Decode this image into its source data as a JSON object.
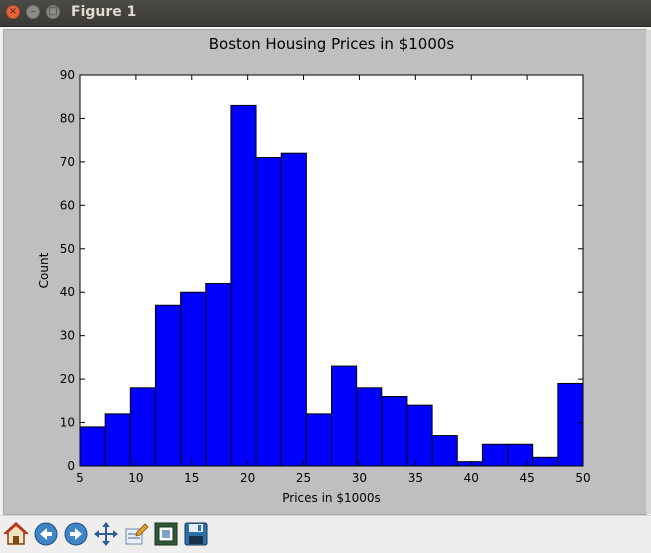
{
  "window": {
    "title": "Figure 1",
    "close_glyph": "×",
    "minimize_glyph": "–",
    "maximize_glyph": "□"
  },
  "toolbar": {
    "buttons": [
      {
        "name": "home-icon",
        "label": "Home"
      },
      {
        "name": "back-icon",
        "label": "Back"
      },
      {
        "name": "forward-icon",
        "label": "Forward"
      },
      {
        "name": "pan-icon",
        "label": "Pan"
      },
      {
        "name": "edit-icon",
        "label": "Edit"
      },
      {
        "name": "subplots-icon",
        "label": "Configure subplots"
      },
      {
        "name": "save-icon",
        "label": "Save"
      }
    ]
  },
  "colors": {
    "bar_fill": "#0000ff",
    "bar_edge": "#000000",
    "figure_bg": "#bfbfbf",
    "axes_bg": "#ffffff"
  },
  "chart_data": {
    "type": "bar",
    "title": "Boston Housing Prices in $1000s",
    "xlabel": "Prices in $1000s",
    "ylabel": "Count",
    "xlim": [
      5,
      50
    ],
    "ylim": [
      0,
      90
    ],
    "xticks": [
      5,
      10,
      15,
      20,
      25,
      30,
      35,
      40,
      45,
      50
    ],
    "yticks": [
      0,
      10,
      20,
      30,
      40,
      50,
      60,
      70,
      80,
      90
    ],
    "bin_edges": [
      5.0,
      7.25,
      9.5,
      11.75,
      14.0,
      16.25,
      18.5,
      20.75,
      23.0,
      25.25,
      27.5,
      29.75,
      32.0,
      34.25,
      36.5,
      38.75,
      41.0,
      43.25,
      45.5,
      47.75,
      50.0
    ],
    "values": [
      9,
      12,
      18,
      37,
      40,
      42,
      83,
      71,
      72,
      12,
      23,
      18,
      16,
      14,
      7,
      1,
      5,
      5,
      2,
      19
    ],
    "grid": false
  }
}
